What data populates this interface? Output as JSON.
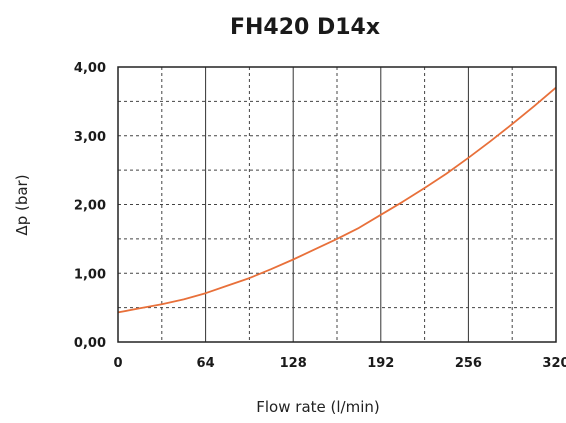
{
  "chart_data": {
    "type": "line",
    "title": "FH420 D14x",
    "xlabel": "Flow rate (l/min)",
    "ylabel": "Δp (bar)",
    "xlim": [
      0,
      320
    ],
    "ylim": [
      0,
      4
    ],
    "x_ticks": [
      "0",
      "64",
      "128",
      "192",
      "256",
      "320"
    ],
    "y_ticks": [
      "0,00",
      "1,00",
      "2,00",
      "3,00",
      "4,00"
    ],
    "grid": true,
    "series": [
      {
        "color": "#e8703a",
        "x": [
          0,
          16,
          32,
          48,
          64,
          80,
          96,
          112,
          128,
          144,
          160,
          176,
          192,
          208,
          224,
          240,
          256,
          272,
          288,
          304,
          320
        ],
        "y": [
          0.43,
          0.49,
          0.55,
          0.62,
          0.71,
          0.82,
          0.93,
          1.06,
          1.2,
          1.35,
          1.5,
          1.66,
          1.85,
          2.04,
          2.24,
          2.45,
          2.68,
          2.92,
          3.17,
          3.43,
          3.7
        ]
      }
    ]
  }
}
